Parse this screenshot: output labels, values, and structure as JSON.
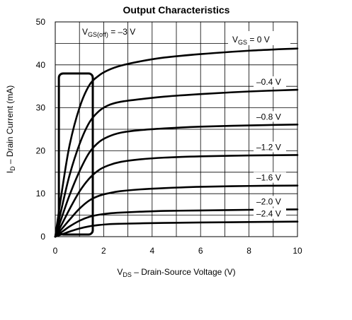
{
  "chart_data": {
    "type": "line",
    "title": "Output Characteristics",
    "xlabel": "V",
    "xlabel_sub": "DS",
    "xlabel_rest": " – Drain-Source Voltage (V)",
    "ylabel": "I",
    "ylabel_sub": "D",
    "ylabel_rest": " – Drain Current (mA)",
    "xlim": [
      0,
      10
    ],
    "ylim": [
      0,
      50
    ],
    "x_ticks": [
      "0",
      "2",
      "4",
      "6",
      "8",
      "10"
    ],
    "y_ticks": [
      "0",
      "10",
      "20",
      "30",
      "40",
      "50"
    ],
    "x_tick_values": [
      0,
      2,
      4,
      6,
      8,
      10
    ],
    "y_tick_values": [
      0,
      10,
      20,
      30,
      40,
      50
    ],
    "grid": true,
    "cutoff_label": {
      "prefix": "V",
      "sub": "GS(off)",
      "suffix": " = –3 V"
    },
    "vgs_label": {
      "prefix": "V",
      "sub": "GS",
      "suffix": " = 0 V"
    },
    "series": [
      {
        "label": "",
        "x": [
          0,
          0.3,
          0.6,
          1.0,
          1.4,
          1.8,
          2.2,
          2.7,
          3.5,
          4.5,
          6,
          8,
          10
        ],
        "y": [
          0,
          11.5,
          21.5,
          30,
          35.2,
          37.5,
          38.8,
          39.8,
          40.8,
          41.7,
          42.5,
          43.3,
          43.8
        ]
      },
      {
        "label": "–0.4 V",
        "x": [
          0,
          0.3,
          0.6,
          1.0,
          1.4,
          1.8,
          2.2,
          2.7,
          3.5,
          4.5,
          6,
          8,
          10
        ],
        "y": [
          0,
          7.5,
          14.5,
          21.5,
          26.5,
          29.2,
          30.6,
          31.4,
          32.0,
          32.6,
          33.2,
          33.8,
          34.2
        ]
      },
      {
        "label": "–0.8 V",
        "x": [
          0,
          0.3,
          0.6,
          1.0,
          1.4,
          1.8,
          2.2,
          2.7,
          3.5,
          4.5,
          6,
          8,
          10
        ],
        "y": [
          0,
          5.0,
          9.8,
          15.2,
          19.5,
          22.0,
          23.3,
          24.2,
          24.8,
          25.2,
          25.6,
          25.9,
          26.1
        ]
      },
      {
        "label": "–1.2 V",
        "x": [
          0,
          0.3,
          0.6,
          1.0,
          1.4,
          1.8,
          2.2,
          2.7,
          3.5,
          4.5,
          6,
          8,
          10
        ],
        "y": [
          0,
          3.2,
          6.5,
          10.5,
          13.5,
          15.5,
          16.6,
          17.4,
          18.0,
          18.4,
          18.7,
          18.9,
          19.0
        ]
      },
      {
        "label": "–1.6 V",
        "x": [
          0,
          0.3,
          0.6,
          1.0,
          1.4,
          1.8,
          2.2,
          2.7,
          3.5,
          4.5,
          6,
          8,
          10
        ],
        "y": [
          0,
          2.0,
          4.0,
          6.5,
          8.4,
          9.5,
          10.1,
          10.6,
          11.0,
          11.3,
          11.6,
          11.8,
          11.9
        ]
      },
      {
        "label": "–2.0 V",
        "x": [
          0,
          0.3,
          0.6,
          1.0,
          1.4,
          1.8,
          2.2,
          2.7,
          3.5,
          4.5,
          6,
          8,
          10
        ],
        "y": [
          0,
          1.2,
          2.4,
          3.7,
          4.6,
          5.1,
          5.4,
          5.6,
          5.8,
          6.0,
          6.1,
          6.25,
          6.35
        ]
      },
      {
        "label": "–2.4 V",
        "x": [
          0,
          0.3,
          0.6,
          1.0,
          1.4,
          1.8,
          2.2,
          2.7,
          3.5,
          4.5,
          6,
          8,
          10
        ],
        "y": [
          0,
          0.6,
          1.2,
          1.9,
          2.4,
          2.7,
          2.9,
          3.0,
          3.1,
          3.2,
          3.3,
          3.4,
          3.5
        ]
      }
    ],
    "ohmic_region_box": {
      "x": [
        0.15,
        1.55
      ],
      "y": [
        0.5,
        38
      ]
    }
  }
}
